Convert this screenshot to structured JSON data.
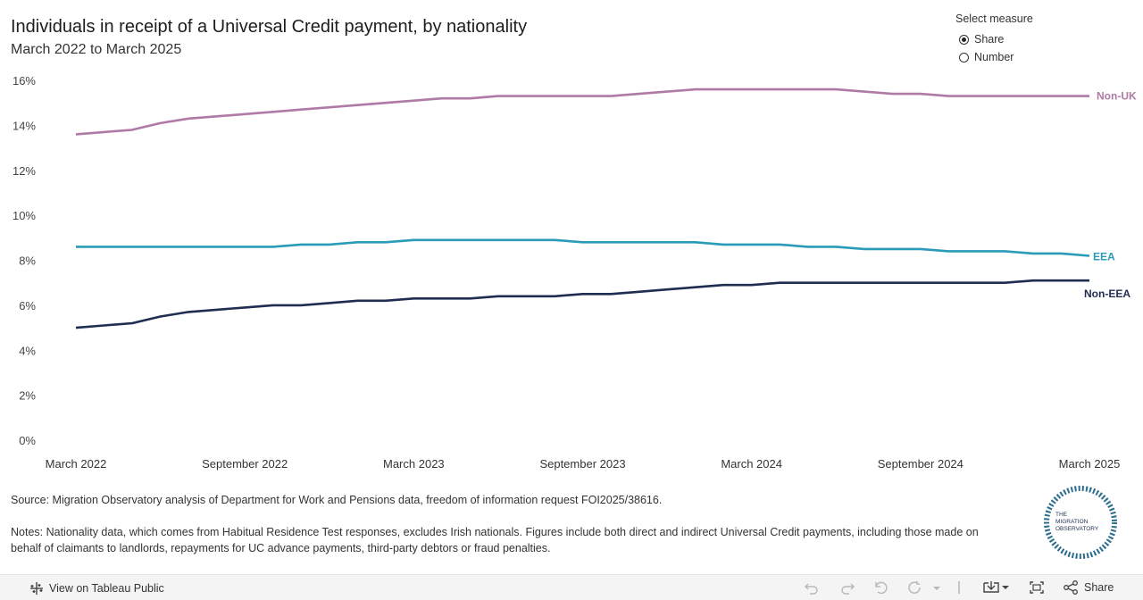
{
  "header": {
    "title": "Individuals in receipt of a Universal Credit payment, by nationality",
    "subtitle": "March 2022 to March 2025"
  },
  "measure_selector": {
    "label": "Select measure",
    "options": [
      {
        "label": "Share",
        "selected": true
      },
      {
        "label": "Number",
        "selected": false
      }
    ]
  },
  "chart_data": {
    "type": "line",
    "title": "Individuals in receipt of a Universal Credit payment, by nationality",
    "subtitle": "March 2022 to March 2025",
    "ylim": [
      0,
      16
    ],
    "y_ticks": [
      "0%",
      "2%",
      "4%",
      "6%",
      "8%",
      "10%",
      "12%",
      "14%",
      "16%"
    ],
    "y_tick_values": [
      0,
      2,
      4,
      6,
      8,
      10,
      12,
      14,
      16
    ],
    "x_ticks": [
      "March 2022",
      "September 2022",
      "March 2023",
      "September 2023",
      "March 2024",
      "September 2024",
      "March 2025"
    ],
    "x_tick_months": [
      0,
      6,
      12,
      18,
      24,
      30,
      36
    ],
    "grid": false,
    "legend": "direct labels at line ends",
    "series": [
      {
        "name": "Non-UK",
        "color": "#b07aa8",
        "values": [
          13.6,
          13.7,
          13.8,
          14.1,
          14.3,
          14.4,
          14.5,
          14.6,
          14.7,
          14.8,
          14.9,
          15.0,
          15.1,
          15.2,
          15.2,
          15.3,
          15.3,
          15.3,
          15.3,
          15.3,
          15.4,
          15.5,
          15.6,
          15.6,
          15.6,
          15.6,
          15.6,
          15.6,
          15.5,
          15.4,
          15.4,
          15.3,
          15.3,
          15.3,
          15.3,
          15.3,
          15.3
        ]
      },
      {
        "name": "EEA",
        "color": "#2a9bb8",
        "values": [
          8.6,
          8.6,
          8.6,
          8.6,
          8.6,
          8.6,
          8.6,
          8.6,
          8.7,
          8.7,
          8.8,
          8.8,
          8.9,
          8.9,
          8.9,
          8.9,
          8.9,
          8.9,
          8.8,
          8.8,
          8.8,
          8.8,
          8.8,
          8.7,
          8.7,
          8.7,
          8.6,
          8.6,
          8.5,
          8.5,
          8.5,
          8.4,
          8.4,
          8.4,
          8.3,
          8.3,
          8.2
        ]
      },
      {
        "name": "Non-EEA",
        "color": "#1e2d50",
        "values": [
          5.0,
          5.1,
          5.2,
          5.5,
          5.7,
          5.8,
          5.9,
          6.0,
          6.0,
          6.1,
          6.2,
          6.2,
          6.3,
          6.3,
          6.3,
          6.4,
          6.4,
          6.4,
          6.5,
          6.5,
          6.6,
          6.7,
          6.8,
          6.9,
          6.9,
          7.0,
          7.0,
          7.0,
          7.0,
          7.0,
          7.0,
          7.0,
          7.0,
          7.0,
          7.1,
          7.1,
          7.1
        ]
      }
    ]
  },
  "source_text": "Source: Migration Observatory analysis of Department for Work and Pensions data, freedom of information request FOI2025/38616.",
  "notes_text": "Notes: Nationality data, which comes from Habitual Residence Test responses, excludes Irish nationals. Figures include both direct and indirect Universal Credit payments, including those made on behalf of claimants to landlords, repayments for UC advance payments, third-party debtors or fraud penalties.",
  "logo": {
    "line1": "THE",
    "line2": "MIGRATION",
    "line3": "OBSERVATORY"
  },
  "footer": {
    "tableau_link": "View on Tableau Public",
    "share_label": "Share"
  }
}
